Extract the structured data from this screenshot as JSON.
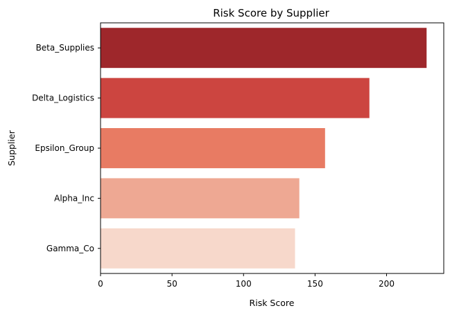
{
  "chart_data": {
    "type": "bar",
    "orientation": "horizontal",
    "title": "Risk Score by Supplier",
    "xlabel": "Risk Score",
    "ylabel": "Supplier",
    "categories": [
      "Beta_Supplies",
      "Delta_Logistics",
      "Epsilon_Group",
      "Alpha_Inc",
      "Gamma_Co"
    ],
    "values": [
      228,
      188,
      157,
      139,
      136
    ],
    "colors": [
      "#9e272b",
      "#cc4540",
      "#e87b63",
      "#eea893",
      "#f7d8cb"
    ],
    "xlim": [
      0,
      240
    ],
    "xticks": [
      0,
      50,
      100,
      150,
      200
    ],
    "grid": false,
    "legend": "none"
  }
}
